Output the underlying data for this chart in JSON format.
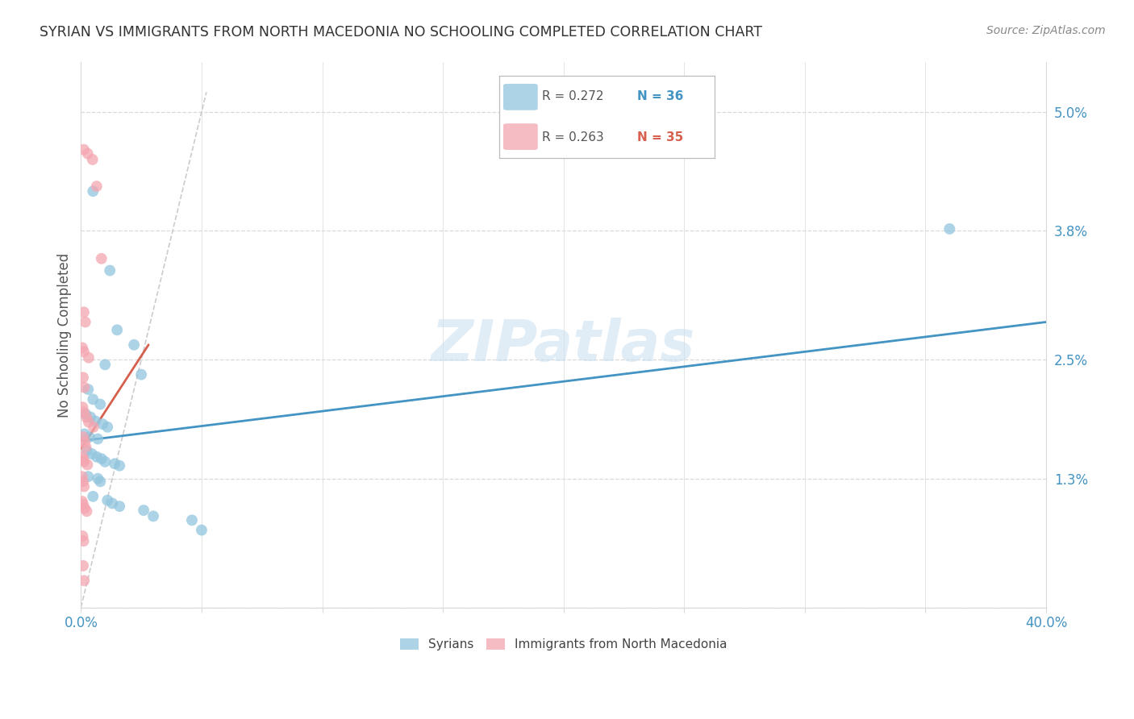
{
  "title": "SYRIAN VS IMMIGRANTS FROM NORTH MACEDONIA NO SCHOOLING COMPLETED CORRELATION CHART",
  "source": "Source: ZipAtlas.com",
  "ylabel": "No Schooling Completed",
  "legend_blue_r": "0.272",
  "legend_blue_n": "36",
  "legend_pink_r": "0.263",
  "legend_pink_n": "35",
  "legend_label_blue": "Syrians",
  "legend_label_pink": "Immigrants from North Macedonia",
  "watermark": "ZIPatlas",
  "blue_color": "#92c5de",
  "pink_color": "#f4a6b0",
  "blue_line_color": "#4393c3",
  "pink_line_color": "#d6604d",
  "ref_line_color": "#cccccc",
  "blue_dots": [
    [
      0.5,
      4.2
    ],
    [
      1.2,
      3.4
    ],
    [
      1.5,
      2.8
    ],
    [
      2.2,
      2.65
    ],
    [
      1.0,
      2.45
    ],
    [
      2.5,
      2.35
    ],
    [
      0.3,
      2.2
    ],
    [
      0.5,
      2.1
    ],
    [
      0.8,
      2.05
    ],
    [
      0.2,
      1.95
    ],
    [
      0.4,
      1.92
    ],
    [
      0.6,
      1.88
    ],
    [
      0.9,
      1.85
    ],
    [
      1.1,
      1.82
    ],
    [
      0.15,
      1.75
    ],
    [
      0.35,
      1.72
    ],
    [
      0.7,
      1.7
    ],
    [
      0.25,
      1.58
    ],
    [
      0.45,
      1.55
    ],
    [
      0.65,
      1.52
    ],
    [
      0.85,
      1.5
    ],
    [
      1.0,
      1.47
    ],
    [
      1.4,
      1.45
    ],
    [
      1.6,
      1.43
    ],
    [
      0.3,
      1.32
    ],
    [
      0.7,
      1.3
    ],
    [
      0.8,
      1.27
    ],
    [
      0.5,
      1.12
    ],
    [
      1.1,
      1.08
    ],
    [
      1.3,
      1.05
    ],
    [
      1.6,
      1.02
    ],
    [
      2.6,
      0.98
    ],
    [
      3.0,
      0.92
    ],
    [
      4.6,
      0.88
    ],
    [
      5.0,
      0.78
    ],
    [
      36.0,
      3.82
    ]
  ],
  "pink_dots": [
    [
      0.12,
      4.62
    ],
    [
      0.28,
      4.58
    ],
    [
      0.48,
      4.52
    ],
    [
      0.65,
      4.25
    ],
    [
      0.85,
      3.52
    ],
    [
      0.12,
      2.98
    ],
    [
      0.18,
      2.88
    ],
    [
      0.06,
      2.62
    ],
    [
      0.12,
      2.58
    ],
    [
      0.32,
      2.52
    ],
    [
      0.09,
      2.32
    ],
    [
      0.14,
      2.22
    ],
    [
      0.07,
      2.02
    ],
    [
      0.12,
      1.97
    ],
    [
      0.22,
      1.92
    ],
    [
      0.32,
      1.87
    ],
    [
      0.52,
      1.82
    ],
    [
      0.09,
      1.72
    ],
    [
      0.16,
      1.67
    ],
    [
      0.2,
      1.62
    ],
    [
      0.07,
      1.52
    ],
    [
      0.11,
      1.49
    ],
    [
      0.13,
      1.47
    ],
    [
      0.27,
      1.44
    ],
    [
      0.05,
      1.32
    ],
    [
      0.09,
      1.27
    ],
    [
      0.13,
      1.22
    ],
    [
      0.05,
      1.07
    ],
    [
      0.09,
      1.04
    ],
    [
      0.16,
      1.0
    ],
    [
      0.24,
      0.97
    ],
    [
      0.07,
      0.72
    ],
    [
      0.11,
      0.67
    ],
    [
      0.09,
      0.42
    ],
    [
      0.13,
      0.27
    ]
  ],
  "blue_trend": {
    "x_start": 0.0,
    "x_end": 40.0,
    "y_start": 1.68,
    "y_end": 2.88
  },
  "pink_trend": {
    "x_start": 0.0,
    "x_end": 2.8,
    "y_start": 1.6,
    "y_end": 2.65
  },
  "ref_line": {
    "x_start": 0.0,
    "y_start": 0.0,
    "x_end": 5.2,
    "y_end": 5.2
  },
  "xmin": 0.0,
  "xmax": 40.0,
  "ymin": 0.0,
  "ymax": 5.5,
  "ytick_vals": [
    0.0,
    1.3,
    2.5,
    3.8,
    5.0
  ],
  "ytick_labels": [
    "",
    "1.3%",
    "2.5%",
    "3.8%",
    "5.0%"
  ],
  "xtick_positions": [
    0.0,
    5.0,
    10.0,
    15.0,
    20.0,
    25.0,
    30.0,
    35.0,
    40.0
  ],
  "grid_color": "#d9d9d9",
  "bg_color": "#ffffff",
  "title_color": "#333333",
  "axis_color": "#4393c3",
  "marker_size": 100
}
